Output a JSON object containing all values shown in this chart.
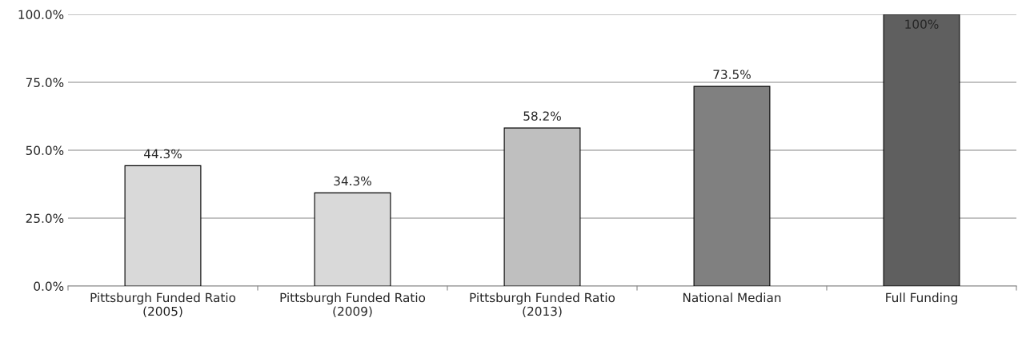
{
  "chart_data": {
    "type": "bar",
    "categories": [
      "Pittsburgh Funded Ratio\n(2005)",
      "Pittsburgh Funded Ratio\n(2009)",
      "Pittsburgh Funded Ratio\n(2013)",
      "National Median",
      "Full Funding"
    ],
    "values": [
      44.3,
      34.3,
      58.2,
      73.5,
      100
    ],
    "colors": [
      "#d9d9d9",
      "#d9d9d9",
      "#bfbfbf",
      "#808080",
      "#5f5f5f"
    ],
    "value_labels": [
      "44.3%",
      "34.3%",
      "58.2%",
      "73.5%",
      "100%"
    ],
    "ylim": [
      0,
      100
    ],
    "yticks": [
      {
        "value": 0,
        "label": "0.0%"
      },
      {
        "value": 25,
        "label": "25.0%"
      },
      {
        "value": 50,
        "label": "50.0%"
      },
      {
        "value": 75,
        "label": "75.0%"
      },
      {
        "value": 100,
        "label": "100.0%"
      }
    ],
    "grid": "y"
  }
}
